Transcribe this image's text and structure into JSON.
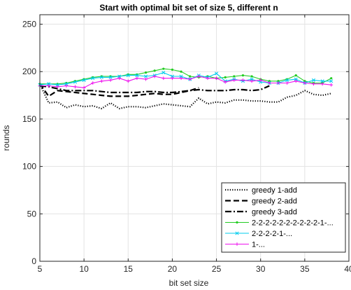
{
  "chart_data": {
    "type": "line",
    "title": "Start with optimal bit set of size 5, different n",
    "xlabel": "bit set size",
    "ylabel": "rounds",
    "xlim": [
      5,
      40
    ],
    "ylim": [
      0,
      260
    ],
    "xticks": [
      5,
      10,
      15,
      20,
      25,
      30,
      35,
      40
    ],
    "yticks": [
      0,
      50,
      100,
      150,
      200,
      250
    ],
    "grid": true,
    "legend_position": "bottom-right",
    "series": [
      {
        "name": "greedy 1-add",
        "color": "#000000",
        "dash": "dotted",
        "marker": "none",
        "x": [
          5,
          6,
          7,
          8,
          9,
          10,
          11,
          12,
          13,
          14,
          15,
          16,
          17,
          18,
          19,
          20,
          21,
          22,
          23,
          24,
          25,
          26,
          27,
          28,
          29,
          30,
          31,
          32,
          33,
          34,
          35,
          36,
          37,
          38
        ],
        "y": [
          187,
          167,
          168,
          162,
          165,
          163,
          164,
          161,
          167,
          161,
          163,
          163,
          162,
          164,
          166,
          165,
          164,
          163,
          172,
          166,
          168,
          167,
          170,
          170,
          169,
          169,
          168,
          168,
          173,
          175,
          180,
          176,
          175,
          177
        ]
      },
      {
        "name": "greedy 2-add",
        "color": "#000000",
        "dash": "dashed",
        "marker": "none",
        "x": [
          5,
          6,
          7,
          8,
          9,
          10,
          11,
          12,
          13,
          14,
          15,
          16,
          17,
          18,
          19,
          20,
          21,
          22,
          23
        ],
        "y": [
          187,
          174,
          180,
          179,
          178,
          177,
          176,
          175,
          174,
          174,
          174,
          175,
          176,
          177,
          176,
          176,
          178,
          180,
          183
        ]
      },
      {
        "name": "greedy 3-add",
        "color": "#000000",
        "dash": "dashdot",
        "marker": "none",
        "x": [
          5,
          6,
          7,
          8,
          9,
          10,
          11,
          12,
          13,
          14,
          15,
          16,
          17,
          18,
          19,
          20,
          21,
          22,
          23,
          24,
          25,
          26,
          27,
          28,
          29,
          30,
          31
        ],
        "y": [
          185,
          184,
          182,
          180,
          180,
          180,
          180,
          179,
          178,
          178,
          178,
          178,
          179,
          179,
          178,
          178,
          179,
          180,
          181,
          180,
          180,
          180,
          181,
          181,
          180,
          181,
          185
        ]
      },
      {
        "name": "2-2-2-2-2-2-2-2-2-2-1-...",
        "color": "#22cc22",
        "dash": "solid",
        "marker": "dot",
        "x": [
          5,
          6,
          7,
          8,
          9,
          10,
          11,
          12,
          13,
          14,
          15,
          16,
          17,
          18,
          19,
          20,
          21,
          22,
          23,
          24,
          25,
          26,
          27,
          28,
          29,
          30,
          31,
          32,
          33,
          34,
          35,
          36,
          37,
          38
        ],
        "y": [
          187,
          187,
          187,
          188,
          190,
          192,
          194,
          195,
          195,
          195,
          197,
          197,
          199,
          201,
          203,
          202,
          200,
          195,
          194,
          195,
          193,
          194,
          195,
          196,
          195,
          192,
          190,
          190,
          192,
          196,
          190,
          188,
          188,
          193
        ]
      },
      {
        "name": "2-2-2-2-1-...",
        "color": "#00ccee",
        "dash": "solid",
        "marker": "x",
        "x": [
          5,
          6,
          7,
          8,
          9,
          10,
          11,
          12,
          13,
          14,
          15,
          16,
          17,
          18,
          19,
          20,
          21,
          22,
          23,
          24,
          25,
          26,
          27,
          28,
          29,
          30,
          31,
          32,
          33,
          34,
          35,
          36,
          37,
          38
        ],
        "y": [
          186,
          187,
          186,
          187,
          189,
          191,
          193,
          194,
          194,
          195,
          196,
          196,
          195,
          196,
          199,
          195,
          195,
          192,
          196,
          194,
          198,
          190,
          192,
          190,
          192,
          189,
          188,
          188,
          191,
          192,
          188,
          191,
          190,
          190
        ]
      },
      {
        "name": "1-...",
        "color": "#ee11ee",
        "dash": "solid",
        "marker": "plus",
        "x": [
          5,
          6,
          7,
          8,
          9,
          10,
          11,
          12,
          13,
          14,
          15,
          16,
          17,
          18,
          19,
          20,
          21,
          22,
          23,
          24,
          25,
          26,
          27,
          28,
          29,
          30,
          31,
          32,
          33,
          34,
          35,
          36,
          37,
          38
        ],
        "y": [
          185,
          185,
          184,
          185,
          184,
          183,
          188,
          190,
          191,
          193,
          190,
          193,
          192,
          195,
          193,
          193,
          193,
          192,
          195,
          193,
          193,
          189,
          191,
          191,
          190,
          191,
          188,
          188,
          188,
          190,
          188,
          187,
          187,
          186
        ]
      }
    ]
  }
}
